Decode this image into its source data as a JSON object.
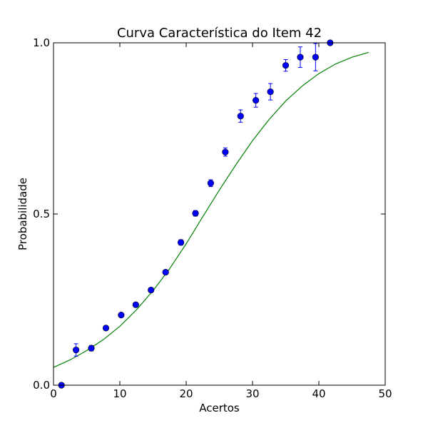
{
  "chart_data": {
    "type": "scatter",
    "title": "Curva Característica do Item 42",
    "xlabel": "Acertos",
    "ylabel": "Probabilidade",
    "xlim": [
      0,
      50
    ],
    "ylim": [
      0,
      1
    ],
    "x_ticks": [
      0,
      10,
      20,
      30,
      40,
      50
    ],
    "x_tick_labels": [
      "0",
      "10",
      "20",
      "30",
      "40",
      "50"
    ],
    "y_ticks": [
      0,
      0.5,
      1
    ],
    "y_tick_labels": [
      "0.0",
      "0.5",
      "1.0"
    ],
    "grid": false,
    "series": [
      {
        "kind": "points_with_error_bars",
        "color": "#0000ff",
        "x": [
          1.2,
          3.4,
          5.7,
          7.9,
          10.2,
          12.4,
          14.7,
          16.9,
          19.2,
          21.4,
          23.7,
          25.9,
          28.2,
          30.5,
          32.7,
          35.0,
          37.2,
          39.5,
          41.7
        ],
        "y": [
          0.0,
          0.103,
          0.108,
          0.167,
          0.205,
          0.235,
          0.278,
          0.33,
          0.417,
          0.502,
          0.59,
          0.681,
          0.786,
          0.832,
          0.857,
          0.934,
          0.958,
          0.958,
          1.0
        ],
        "y_err": [
          0.0,
          0.018,
          0.008,
          0.005,
          0.004,
          0.004,
          0.006,
          0.005,
          0.008,
          0.008,
          0.01,
          0.012,
          0.018,
          0.02,
          0.024,
          0.017,
          0.03,
          0.04,
          0.0
        ]
      },
      {
        "kind": "fitted_curve",
        "color": "#008000",
        "x": [
          0,
          2.5,
          5,
          7.5,
          10,
          12.5,
          15,
          17.5,
          20,
          22.5,
          25,
          27.5,
          30,
          32.5,
          35,
          37.5,
          40,
          42.5,
          45,
          47.5
        ],
        "y": [
          0.052,
          0.074,
          0.101,
          0.133,
          0.172,
          0.22,
          0.276,
          0.34,
          0.413,
          0.492,
          0.57,
          0.644,
          0.714,
          0.776,
          0.83,
          0.874,
          0.91,
          0.938,
          0.958,
          0.972
        ]
      }
    ]
  }
}
